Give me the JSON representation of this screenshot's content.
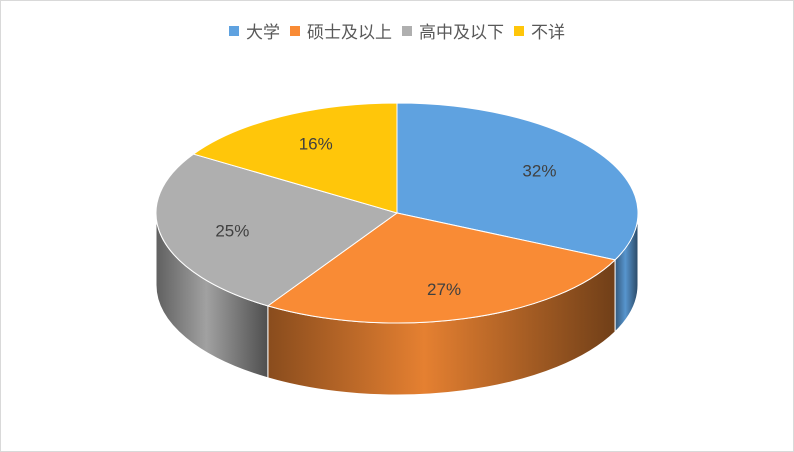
{
  "chart_data": {
    "type": "pie",
    "title": "",
    "categories": [
      "大学",
      "硕士及以上",
      "高中及以下",
      "不详"
    ],
    "values": [
      32,
      27,
      25,
      16
    ],
    "labels": [
      "32%",
      "27%",
      "25%",
      "16%"
    ],
    "colors": [
      "#5fa2e0",
      "#f98b35",
      "#afafaf",
      "#ffc60a"
    ],
    "legend_position": "top",
    "three_d": true
  }
}
